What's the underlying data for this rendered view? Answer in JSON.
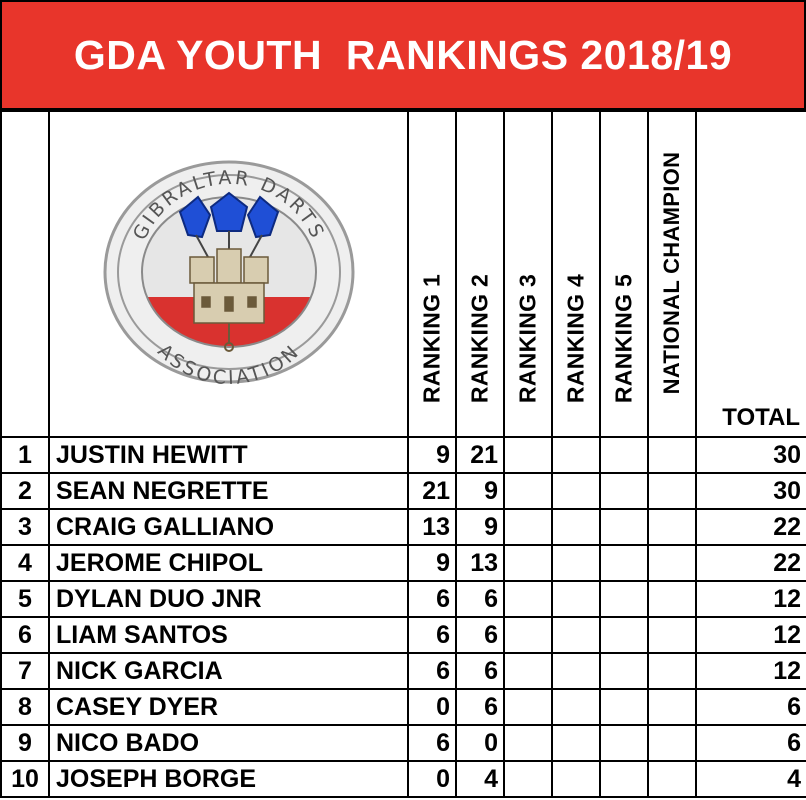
{
  "title": "GDA YOUTH  RANKINGS 2018/19",
  "logo": {
    "top_text": "GIBRALTAR DARTS",
    "bottom_text": "ASSOCIATION",
    "colors": {
      "dart_blue": "#1f4fd6",
      "red": "#d9322f",
      "ring": "#8a8a8a",
      "grey": "#dcdcdc"
    }
  },
  "columns": {
    "r1": "RANKING 1",
    "r2": "RANKING 2",
    "r3": "RANKING 3",
    "r4": "RANKING 4",
    "r5": "RANKING 5",
    "nat": "NATIONAL  CHAMPION",
    "total": "TOTAL"
  },
  "rows": [
    {
      "pos": "1",
      "name": "JUSTIN HEWITT",
      "r1": "9",
      "r2": "21",
      "total": "30"
    },
    {
      "pos": "2",
      "name": "SEAN NEGRETTE",
      "r1": "21",
      "r2": "9",
      "total": "30"
    },
    {
      "pos": "3",
      "name": "CRAIG GALLIANO",
      "r1": "13",
      "r2": "9",
      "total": "22"
    },
    {
      "pos": "4",
      "name": "JEROME CHIPOL",
      "r1": "9",
      "r2": "13",
      "total": "22"
    },
    {
      "pos": "5",
      "name": "DYLAN DUO JNR",
      "r1": "6",
      "r2": "6",
      "total": "12"
    },
    {
      "pos": "6",
      "name": "LIAM SANTOS",
      "r1": "6",
      "r2": "6",
      "total": "12"
    },
    {
      "pos": "7",
      "name": "NICK GARCIA",
      "r1": "6",
      "r2": "6",
      "total": "12"
    },
    {
      "pos": "8",
      "name": "CASEY DYER",
      "r1": "0",
      "r2": "6",
      "total": "6"
    },
    {
      "pos": "9",
      "name": "NICO BADO",
      "r1": "6",
      "r2": "0",
      "total": "6"
    },
    {
      "pos": "10",
      "name": "JOSEPH BORGE",
      "r1": "0",
      "r2": "4",
      "total": "4"
    }
  ]
}
